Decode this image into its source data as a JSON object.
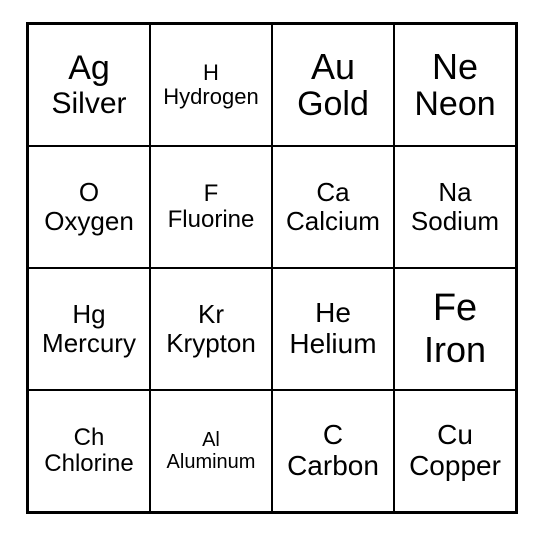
{
  "grid": {
    "columns": 4,
    "rows": 4,
    "border_color": "#000000",
    "background_color": "#ffffff",
    "text_color": "#000000",
    "font_family": "Arial",
    "cells": [
      {
        "symbol": "Ag",
        "name": "Silver",
        "symbol_fontsize": 34,
        "name_fontsize": 30
      },
      {
        "symbol": "H",
        "name": "Hydrogen",
        "symbol_fontsize": 22,
        "name_fontsize": 22
      },
      {
        "symbol": "Au",
        "name": "Gold",
        "symbol_fontsize": 36,
        "name_fontsize": 34
      },
      {
        "symbol": "Ne",
        "name": "Neon",
        "symbol_fontsize": 36,
        "name_fontsize": 34
      },
      {
        "symbol": "O",
        "name": "Oxygen",
        "symbol_fontsize": 26,
        "name_fontsize": 26
      },
      {
        "symbol": "F",
        "name": "Fluorine",
        "symbol_fontsize": 24,
        "name_fontsize": 24
      },
      {
        "symbol": "Ca",
        "name": "Calcium",
        "symbol_fontsize": 26,
        "name_fontsize": 26
      },
      {
        "symbol": "Na",
        "name": "Sodium",
        "symbol_fontsize": 26,
        "name_fontsize": 26
      },
      {
        "symbol": "Hg",
        "name": "Mercury",
        "symbol_fontsize": 26,
        "name_fontsize": 26
      },
      {
        "symbol": "Kr",
        "name": "Krypton",
        "symbol_fontsize": 26,
        "name_fontsize": 26
      },
      {
        "symbol": "He",
        "name": "Helium",
        "symbol_fontsize": 28,
        "name_fontsize": 28
      },
      {
        "symbol": "Fe",
        "name": "Iron",
        "symbol_fontsize": 38,
        "name_fontsize": 36
      },
      {
        "symbol": "Ch",
        "name": "Chlorine",
        "symbol_fontsize": 24,
        "name_fontsize": 24
      },
      {
        "symbol": "Al",
        "name": "Aluminum",
        "symbol_fontsize": 20,
        "name_fontsize": 20
      },
      {
        "symbol": "C",
        "name": "Carbon",
        "symbol_fontsize": 28,
        "name_fontsize": 28
      },
      {
        "symbol": "Cu",
        "name": "Copper",
        "symbol_fontsize": 28,
        "name_fontsize": 28
      }
    ]
  }
}
